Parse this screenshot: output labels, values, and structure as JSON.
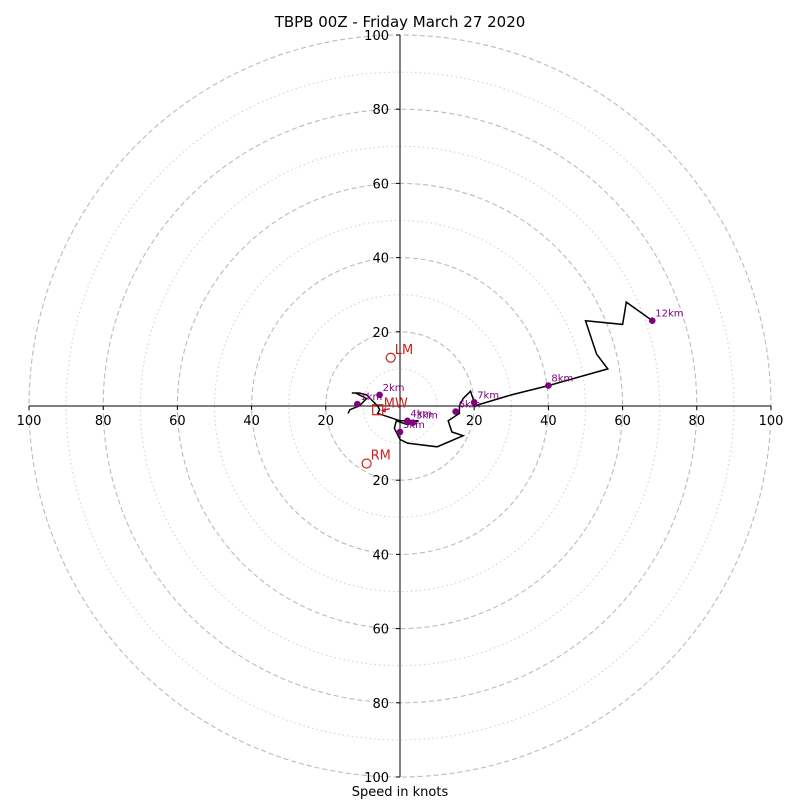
{
  "chart_data": {
    "type": "line",
    "title": "TBPB 00Z - Friday March 27 2020",
    "xlabel": "Speed in knots",
    "ylabel": "",
    "xlim": [
      -100,
      100
    ],
    "ylim": [
      -100,
      100
    ],
    "ring_values": [
      20,
      40,
      60,
      80,
      100
    ],
    "minor_ring_values": [
      10,
      30,
      50,
      70,
      90
    ],
    "tick_values": [
      20,
      40,
      60,
      80,
      100
    ],
    "grid": true,
    "colors": {
      "trace": "#000000",
      "height_marker": "#800080",
      "storm_motion": "#cc2222",
      "grid": "#bbbbbb",
      "axis": "#000000"
    },
    "trace": {
      "x": [
        -14,
        -13.5,
        -11,
        -9,
        -12,
        -13,
        -11,
        -9,
        -8,
        -7,
        -6,
        -5.5,
        -6,
        -3,
        0,
        2,
        3,
        5,
        2,
        -1,
        -1.5,
        0,
        2,
        10,
        17,
        14,
        13,
        16,
        16,
        17,
        19,
        20,
        20,
        30,
        40,
        56,
        53,
        50,
        60,
        60.5,
        61,
        68
      ],
      "y": [
        -2,
        -1,
        0,
        2,
        3.5,
        3.5,
        3.5,
        3,
        2,
        1,
        0,
        -1,
        -2,
        -3,
        -4,
        -4,
        -4,
        -4,
        -5,
        -4,
        -6,
        -9,
        -10,
        -11,
        -8,
        -7,
        -4,
        -2,
        0,
        2,
        4,
        1,
        0,
        3,
        5.5,
        10,
        14,
        23,
        22,
        25,
        28,
        23
      ]
    },
    "height_markers": [
      {
        "label": "1km",
        "x": -11.5,
        "y": 0.5
      },
      {
        "label": "2km",
        "x": -5.5,
        "y": 3
      },
      {
        "label": "3km",
        "x": 3.5,
        "y": -4.5
      },
      {
        "label": "4km",
        "x": 2,
        "y": -4
      },
      {
        "label": "5km",
        "x": 0,
        "y": -7
      },
      {
        "label": "6km",
        "x": 15,
        "y": -1.5
      },
      {
        "label": "7km",
        "x": 20,
        "y": 1
      },
      {
        "label": "8km",
        "x": 40,
        "y": 5.5
      },
      {
        "label": "12km",
        "x": 68,
        "y": 23
      }
    ],
    "storm_motion": [
      {
        "label": "LM",
        "x": -2.5,
        "y": 13,
        "marker": "circle"
      },
      {
        "label": "RM",
        "x": -9,
        "y": -15.5,
        "marker": "circle"
      },
      {
        "label": "MW",
        "x": -6,
        "y": -1,
        "marker": "square"
      }
    ]
  }
}
